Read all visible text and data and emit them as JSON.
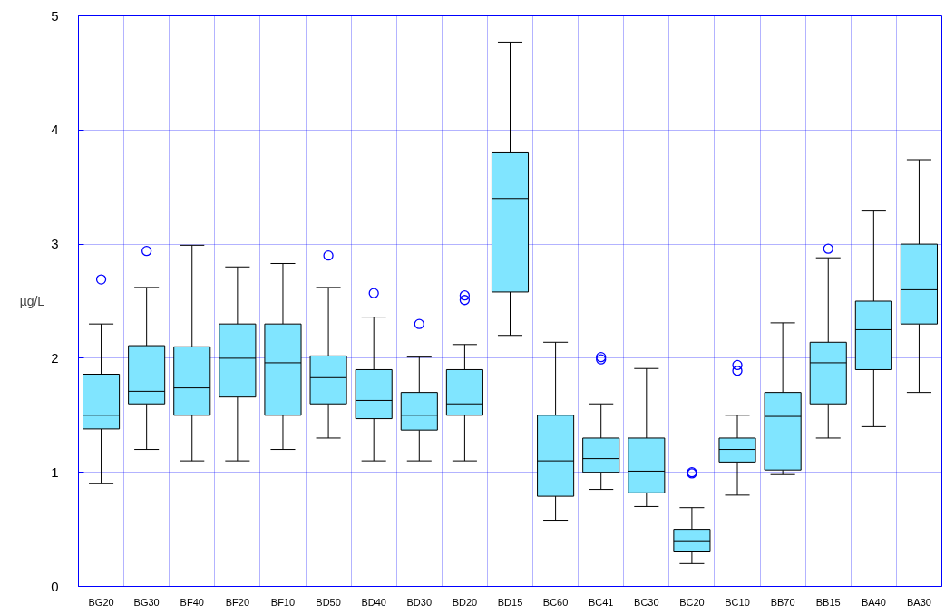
{
  "chart_data": {
    "type": "box",
    "ylabel": "µg/L",
    "categories": [
      "BG20",
      "BG30",
      "BF40",
      "BF20",
      "BF10",
      "BD50",
      "BD40",
      "BD30",
      "BD20",
      "BD15",
      "BC60",
      "BC41",
      "BC30",
      "BC20",
      "BC10",
      "BB70",
      "BB15",
      "BA40",
      "BA30"
    ],
    "ylim": [
      0,
      5
    ],
    "yticks": [
      0,
      1,
      2,
      3,
      4,
      5
    ],
    "grid": true,
    "color": "#80e5ff",
    "boxes": [
      {
        "low": 0.9,
        "q1": 1.38,
        "median": 1.5,
        "q3": 1.86,
        "high": 2.3,
        "outliers": [
          2.69
        ]
      },
      {
        "low": 1.2,
        "q1": 1.6,
        "median": 1.71,
        "q3": 2.11,
        "high": 2.62,
        "outliers": [
          2.94
        ]
      },
      {
        "low": 1.1,
        "q1": 1.5,
        "median": 1.74,
        "q3": 2.1,
        "high": 2.99
      },
      {
        "low": 1.1,
        "q1": 1.66,
        "median": 2.0,
        "q3": 2.3,
        "high": 2.8
      },
      {
        "low": 1.2,
        "q1": 1.5,
        "median": 1.96,
        "q3": 2.3,
        "high": 2.83
      },
      {
        "low": 1.3,
        "q1": 1.6,
        "median": 1.83,
        "q3": 2.02,
        "high": 2.62,
        "outliers": [
          2.9
        ]
      },
      {
        "low": 1.1,
        "q1": 1.47,
        "median": 1.63,
        "q3": 1.9,
        "high": 2.36,
        "outliers": [
          2.57
        ]
      },
      {
        "low": 1.1,
        "q1": 1.37,
        "median": 1.5,
        "q3": 1.7,
        "high": 2.01,
        "outliers": [
          2.3
        ]
      },
      {
        "low": 1.1,
        "q1": 1.5,
        "median": 1.6,
        "q3": 1.9,
        "high": 2.12,
        "outliers": [
          2.55,
          2.51
        ]
      },
      {
        "low": 2.2,
        "q1": 2.58,
        "median": 3.4,
        "q3": 3.8,
        "high": 4.77
      },
      {
        "low": 0.58,
        "q1": 0.79,
        "median": 1.1,
        "q3": 1.5,
        "high": 2.14
      },
      {
        "low": 0.85,
        "q1": 1.0,
        "median": 1.12,
        "q3": 1.3,
        "high": 1.6,
        "outliers": [
          2.01,
          1.99
        ]
      },
      {
        "low": 0.7,
        "q1": 0.82,
        "median": 1.01,
        "q3": 1.3,
        "high": 1.91
      },
      {
        "low": 0.2,
        "q1": 0.31,
        "median": 0.4,
        "q3": 0.5,
        "high": 0.69,
        "outliers": [
          1.0,
          0.99
        ]
      },
      {
        "low": 0.8,
        "q1": 1.09,
        "median": 1.2,
        "q3": 1.3,
        "high": 1.5,
        "outliers": [
          1.94,
          1.89
        ]
      },
      {
        "low": 0.98,
        "q1": 1.02,
        "median": 1.49,
        "q3": 1.7,
        "high": 2.31
      },
      {
        "low": 1.3,
        "q1": 1.6,
        "median": 1.96,
        "q3": 2.14,
        "high": 2.88,
        "outliers": [
          2.96
        ]
      },
      {
        "low": 1.4,
        "q1": 1.9,
        "median": 2.25,
        "q3": 2.5,
        "high": 3.29
      },
      {
        "low": 1.7,
        "q1": 2.3,
        "median": 2.6,
        "q3": 3.0,
        "high": 3.74
      }
    ]
  }
}
